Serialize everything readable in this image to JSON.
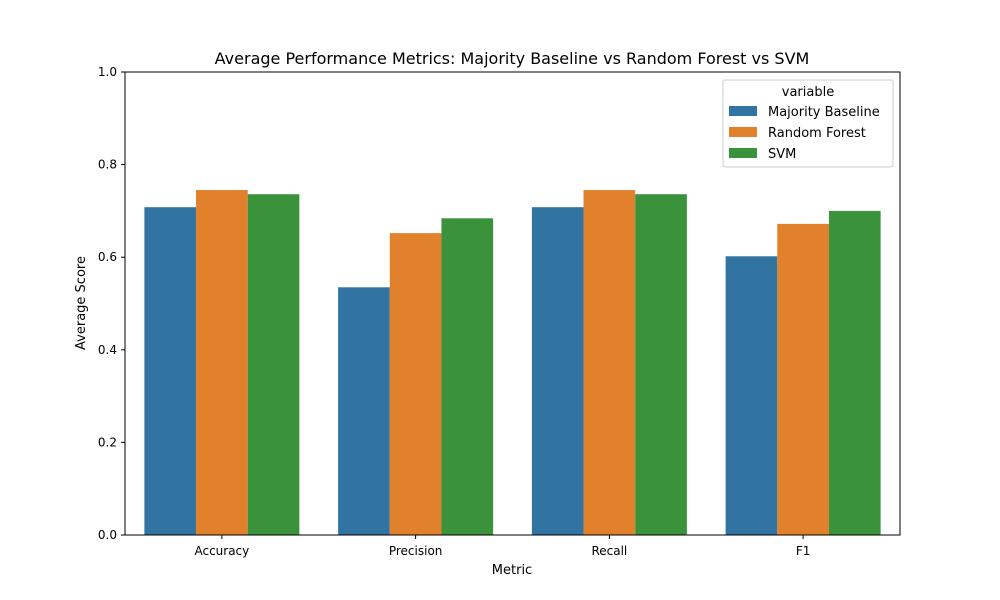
{
  "chart_data": {
    "type": "bar",
    "title": "Average Performance Metrics: Majority Baseline vs Random Forest vs SVM",
    "xlabel": "Metric",
    "ylabel": "Average Score",
    "categories": [
      "Accuracy",
      "Precision",
      "Recall",
      "F1"
    ],
    "ylim": [
      0,
      1.0
    ],
    "yticks": [
      "0.0",
      "0.2",
      "0.4",
      "0.6",
      "0.8",
      "1.0"
    ],
    "grid": false,
    "legend": {
      "title": "variable",
      "placement": "top-right"
    },
    "series": [
      {
        "name": "Majority Baseline",
        "color": "#3274a1",
        "values": [
          0.708,
          0.535,
          0.708,
          0.602
        ]
      },
      {
        "name": "Random Forest",
        "color": "#e1812c",
        "values": [
          0.745,
          0.652,
          0.745,
          0.672
        ]
      },
      {
        "name": "SVM",
        "color": "#3a923a",
        "values": [
          0.736,
          0.684,
          0.736,
          0.7
        ]
      }
    ]
  }
}
